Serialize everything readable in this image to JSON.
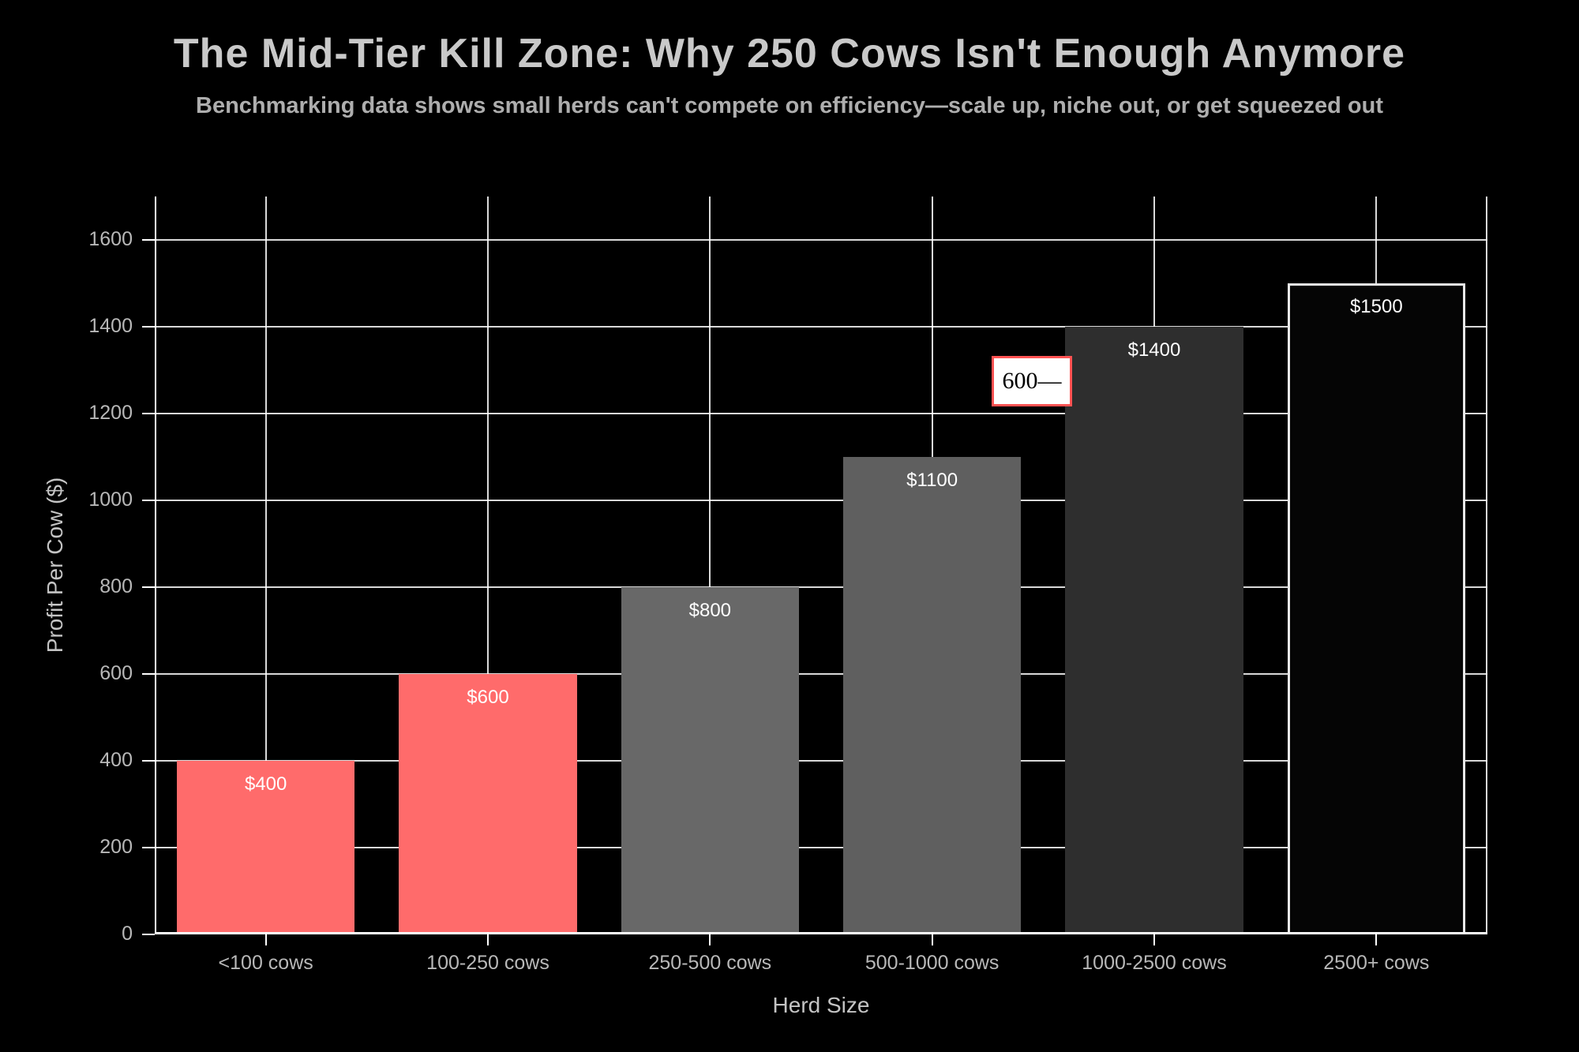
{
  "header": {
    "title": "The Mid-Tier Kill Zone: Why 250 Cows Isn't Enough Anymore",
    "subtitle": "Benchmarking data shows small herds can't compete on efficiency—scale up, niche out, or get squeezed out"
  },
  "chart_data": {
    "type": "bar",
    "title": "The Mid-Tier Kill Zone: Why 250 Cows Isn't Enough Anymore",
    "subtitle": "Benchmarking data shows small herds can't compete on efficiency—scale up, niche out, or get squeezed out",
    "categories": [
      "<100 cows",
      "100-250 cows",
      "250-500 cows",
      "500-1000 cows",
      "1000-2500 cows",
      "2500+ cows"
    ],
    "values": [
      400,
      600,
      800,
      1100,
      1400,
      1500
    ],
    "bar_labels": [
      "$400",
      "$600",
      "$800",
      "$1100",
      "$1400",
      "$1500"
    ],
    "bar_colors": [
      "#ff6b6b",
      "#ff6b6b",
      "#686868",
      "#5f5f5f",
      "#2e2e2e",
      "#050505"
    ],
    "bar_borders": [
      null,
      null,
      null,
      null,
      null,
      "#e8e8e8"
    ],
    "xlabel": "Herd Size",
    "ylabel": "Profit Per Cow ($)",
    "ylim": [
      0,
      1700
    ],
    "yticks": [
      0,
      200,
      400,
      600,
      800,
      1000,
      1200,
      1400,
      1600
    ],
    "grid": true,
    "grid_color": "#ffffff",
    "background": "#000000",
    "legend": "none",
    "annotation": {
      "text": "600—",
      "background": "#ffffff",
      "border_color": "#ff5252",
      "text_color": "#000000"
    }
  }
}
